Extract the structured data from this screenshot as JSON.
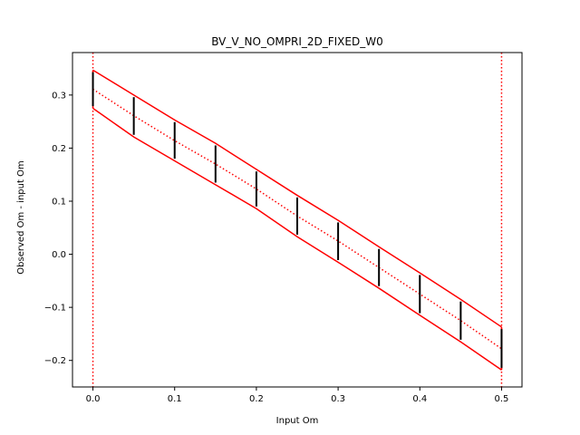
{
  "chart_data": {
    "type": "line",
    "title": "BV_V_NO_OMPRI_2D_FIXED_W0",
    "xlabel": "Input Om",
    "ylabel": "Observed Om - input Om",
    "xlim": [
      -0.025,
      0.525
    ],
    "ylim": [
      -0.25,
      0.38
    ],
    "xticks": [
      0.0,
      0.1,
      0.2,
      0.3,
      0.4,
      0.5
    ],
    "xtick_labels": [
      "0.0",
      "0.1",
      "0.2",
      "0.3",
      "0.4",
      "0.5"
    ],
    "yticks": [
      -0.2,
      -0.1,
      0.0,
      0.1,
      0.2,
      0.3
    ],
    "ytick_labels": [
      "−0.2",
      "−0.1",
      "0.0",
      "0.1",
      "0.2",
      "0.3"
    ],
    "grid": false,
    "vlines": [
      0.0,
      0.5
    ],
    "colors": {
      "band": "#ff0000",
      "center": "#ff0000",
      "errorbar": "#000000",
      "vline": "#ff0000"
    },
    "points": [
      {
        "x": 0.0,
        "lo": 0.275,
        "hi": 0.347,
        "mid": 0.311
      },
      {
        "x": 0.05,
        "lo": 0.221,
        "hi": 0.3,
        "mid": 0.261
      },
      {
        "x": 0.1,
        "lo": 0.176,
        "hi": 0.253,
        "mid": 0.214
      },
      {
        "x": 0.15,
        "lo": 0.131,
        "hi": 0.209,
        "mid": 0.17
      },
      {
        "x": 0.2,
        "lo": 0.086,
        "hi": 0.16,
        "mid": 0.123
      },
      {
        "x": 0.25,
        "lo": 0.033,
        "hi": 0.111,
        "mid": 0.072
      },
      {
        "x": 0.3,
        "lo": -0.015,
        "hi": 0.064,
        "mid": 0.025
      },
      {
        "x": 0.35,
        "lo": -0.064,
        "hi": 0.014,
        "mid": -0.025
      },
      {
        "x": 0.4,
        "lo": -0.115,
        "hi": -0.035,
        "mid": -0.075
      },
      {
        "x": 0.45,
        "lo": -0.165,
        "hi": -0.085,
        "mid": -0.125
      },
      {
        "x": 0.5,
        "lo": -0.218,
        "hi": -0.137,
        "mid": -0.178
      }
    ]
  }
}
